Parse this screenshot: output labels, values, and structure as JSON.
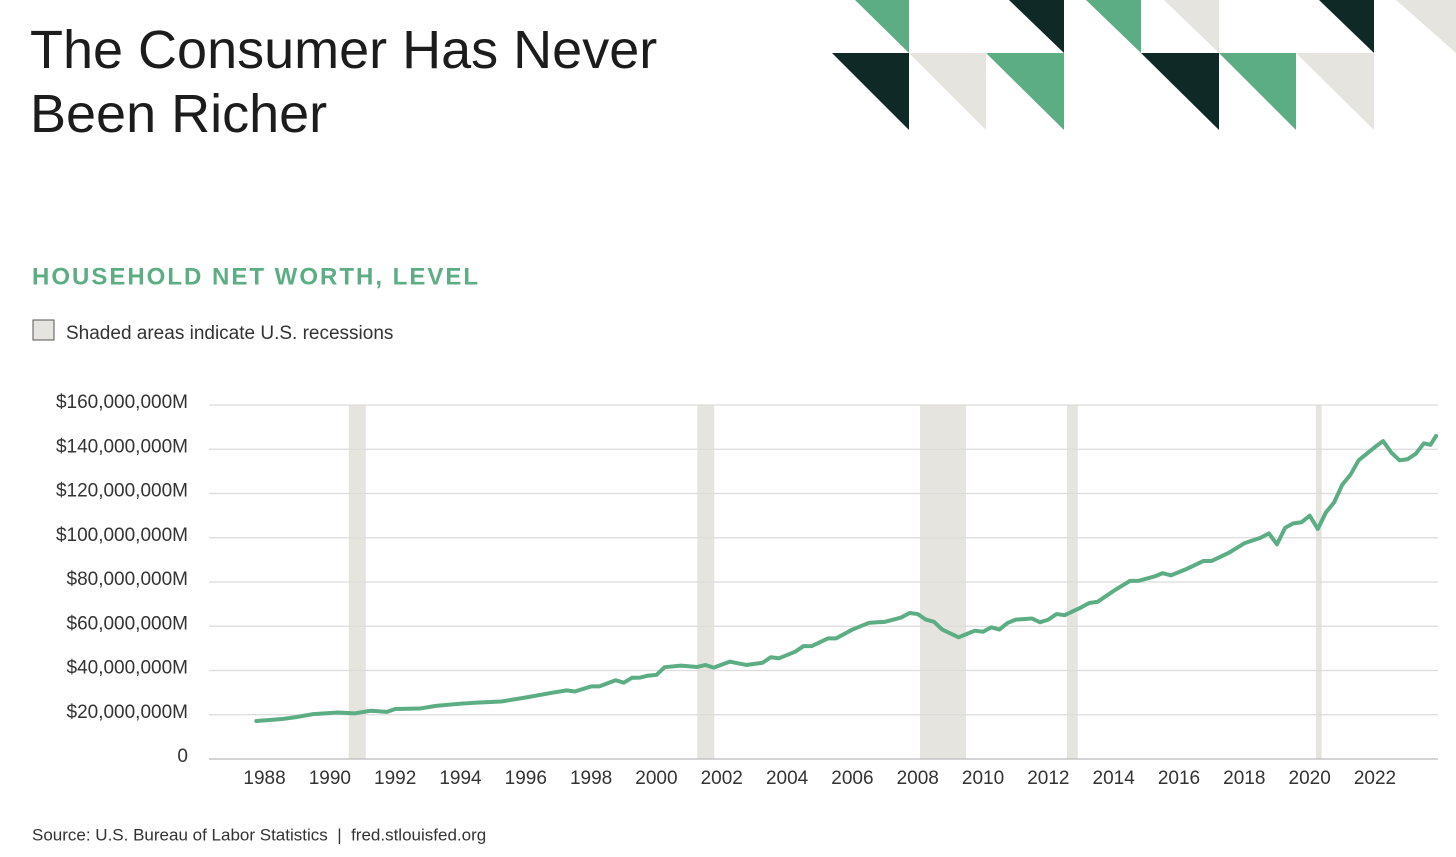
{
  "chart_data": {
    "type": "line",
    "title": "The Consumer Has Never Been Richer",
    "subtitle": "HOUSEHOLD NET WORTH, LEVEL",
    "legend_note": "Shaded areas indicate U.S. recessions",
    "source": "Source: U.S. Bureau of Labor Statistics  |  fred.stlouisfed.org",
    "color": "#5cad84",
    "recession_color": "#e6e4df",
    "recessions": [
      [
        1990.58,
        1991.1
      ],
      [
        2001.25,
        2001.77
      ],
      [
        2008.07,
        2009.48
      ],
      [
        2012.57,
        2012.9
      ],
      [
        2020.19,
        2020.37
      ]
    ],
    "xlim": [
      1986.3,
      2023.93
    ],
    "xticks": [
      1988,
      1990,
      1992,
      1994,
      1996,
      1998,
      2000,
      2002,
      2004,
      2006,
      2008,
      2010,
      2012,
      2014,
      2016,
      2018,
      2020,
      2022
    ],
    "ylim": [
      0,
      160000000
    ],
    "yticks": [
      0,
      {
        "value": 20000000,
        "label": "$20,000,000M"
      },
      {
        "value": 40000000,
        "label": "$40,000,000M"
      },
      {
        "value": 60000000,
        "label": "$60,000,000M"
      },
      {
        "value": 80000000,
        "label": "$80,000,000M"
      },
      {
        "value": 100000000,
        "label": "$100,000,000M"
      },
      {
        "value": 120000000,
        "label": "$120,000,000M"
      },
      {
        "value": 140000000,
        "label": "$140,000,000M"
      },
      {
        "value": 160000000,
        "label": "$160,000,000M"
      }
    ],
    "grid": true,
    "x": [
      1987.75,
      1988.5,
      1989,
      1989.5,
      1990.25,
      1990.75,
      1991.25,
      1991.75,
      1992,
      1992.75,
      1993.25,
      1994,
      1994.5,
      1995.25,
      1996,
      1996.75,
      1997.25,
      1997.5,
      1998,
      1998.25,
      1998.75,
      1999,
      1999.25,
      1999.5,
      1999.75,
      2000,
      2000.25,
      2000.75,
      2001.25,
      2001.5,
      2001.75,
      2002.25,
      2002.75,
      2003.25,
      2003.5,
      2003.75,
      2004.25,
      2004.5,
      2004.75,
      2005.25,
      2005.5,
      2006,
      2006.5,
      2006.75,
      2007,
      2007.5,
      2007.75,
      2008,
      2008.25,
      2008.5,
      2008.75,
      2009.25,
      2009.5,
      2009.75,
      2010,
      2010.25,
      2010.5,
      2010.75,
      2011,
      2011.5,
      2011.75,
      2012,
      2012.25,
      2012.5,
      2013,
      2013.25,
      2013.5,
      2014,
      2014.5,
      2014.75,
      2015.25,
      2015.5,
      2015.75,
      2016.25,
      2016.75,
      2017,
      2017.5,
      2018,
      2018.5,
      2018.75,
      2019,
      2019.25,
      2019.5,
      2019.75,
      2020,
      2020.25,
      2020.5,
      2020.75,
      2021,
      2021.25,
      2021.5,
      2021.75,
      2022,
      2022.25,
      2022.5,
      2022.75,
      2023,
      2023.25,
      2023.5,
      2023.7,
      2023.87
    ],
    "values": [
      17200000,
      18000000,
      19000000,
      20300000,
      21000000,
      20600000,
      21800000,
      21300000,
      22600000,
      22800000,
      24000000,
      25000000,
      25500000,
      26000000,
      27800000,
      29800000,
      31000000,
      30500000,
      32800000,
      32800000,
      35600000,
      34500000,
      36700000,
      36800000,
      37700000,
      38000000,
      41500000,
      42200000,
      41600000,
      42500000,
      41300000,
      44000000,
      42500000,
      43500000,
      46000000,
      45500000,
      48500000,
      51000000,
      51000000,
      54500000,
      54500000,
      58500000,
      61500000,
      61800000,
      62000000,
      64000000,
      66000000,
      65500000,
      63000000,
      62000000,
      58500000,
      55000000,
      56500000,
      58000000,
      57500000,
      59500000,
      58500000,
      61500000,
      63000000,
      63500000,
      61800000,
      63000000,
      65500000,
      65000000,
      68500000,
      70500000,
      71000000,
      76000000,
      80500000,
      80500000,
      82500000,
      84000000,
      83000000,
      86000000,
      89500000,
      89500000,
      93000000,
      97500000,
      100000000,
      102000000,
      97000000,
      104500000,
      106500000,
      107000000,
      110000000,
      104000000,
      111500000,
      116000000,
      124000000,
      128500000,
      135000000,
      138000000,
      141000000,
      143700000,
      138500000,
      135000000,
      135500000,
      138000000,
      142700000,
      142000000,
      146000000
    ]
  }
}
